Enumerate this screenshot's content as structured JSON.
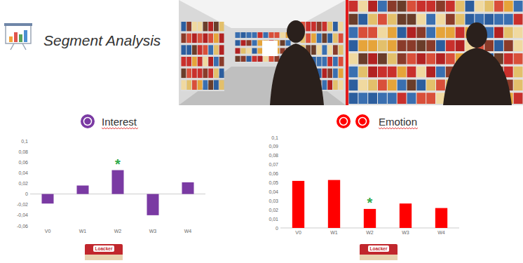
{
  "header": {
    "title": "Segment Analysis",
    "product_label": "Loacker"
  },
  "chart_data": [
    {
      "type": "bar",
      "title": "Interest",
      "categories": [
        "V0",
        "W1",
        "W2",
        "W3",
        "W4"
      ],
      "values": [
        -0.018,
        0.016,
        0.045,
        -0.04,
        0.022
      ],
      "color": "#7a3aa3",
      "ylim": [
        -0.06,
        0.1
      ],
      "yticks": [
        {
          "value": -0.06,
          "label": "-0,06"
        },
        {
          "value": -0.04,
          "label": "-0,04"
        },
        {
          "value": -0.02,
          "label": "-0,02"
        },
        0,
        {
          "value": 0.02,
          "label": "0,02"
        },
        {
          "value": 0.04,
          "label": "0,04"
        },
        {
          "value": 0.06,
          "label": "0,06"
        },
        {
          "value": 0.08,
          "label": "0,08"
        },
        {
          "value": 0.1,
          "label": "0,1"
        }
      ],
      "grid": false,
      "annotations": [
        {
          "text": "*",
          "x": "W2",
          "color": "#2eaa4a"
        }
      ]
    },
    {
      "type": "bar",
      "title": "Emotion",
      "categories": [
        "V0",
        "W1",
        "W2",
        "W3",
        "W4"
      ],
      "values": [
        0.052,
        0.053,
        0.021,
        0.027,
        0.022
      ],
      "color": "#ff0000",
      "ylim": [
        0,
        0.1
      ],
      "yticks": [
        0,
        {
          "value": 0.01,
          "label": "0,01"
        },
        {
          "value": 0.02,
          "label": "0,02"
        },
        {
          "value": 0.03,
          "label": "0,03"
        },
        {
          "value": 0.04,
          "label": "0,04"
        },
        {
          "value": 0.05,
          "label": "0,05"
        },
        {
          "value": 0.06,
          "label": "0,06"
        },
        {
          "value": 0.07,
          "label": "0,07"
        },
        {
          "value": 0.08,
          "label": "0,08"
        },
        {
          "value": 0.09,
          "label": "0,09"
        },
        {
          "value": 0.1,
          "label": "0,1"
        }
      ],
      "grid": false,
      "annotations": [
        {
          "text": "*",
          "x": "W2",
          "color": "#2eaa4a"
        }
      ]
    }
  ]
}
